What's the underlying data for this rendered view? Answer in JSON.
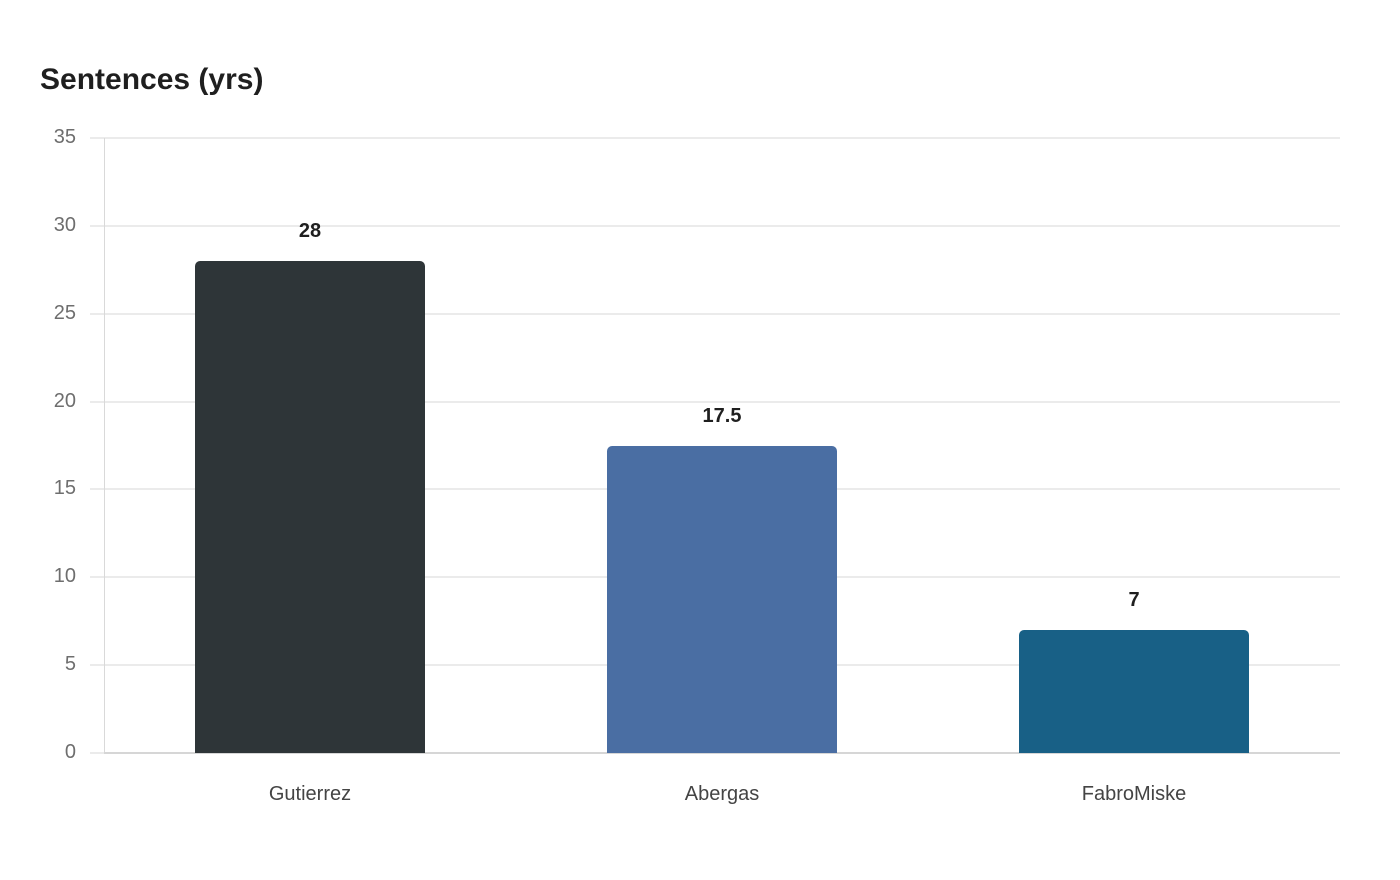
{
  "title": "Sentences (yrs)",
  "y_ticks": [
    "0",
    "5",
    "10",
    "15",
    "20",
    "25",
    "30",
    "35"
  ],
  "bars": [
    {
      "label": "Gutierrez",
      "value": 28,
      "value_label": "28",
      "color": "#2e3538"
    },
    {
      "label": "Abergas",
      "value": 17.5,
      "value_label": "17.5",
      "color": "#4a6ea3"
    },
    {
      "label": "FabroMiske",
      "value": 7,
      "value_label": "7",
      "color": "#186086"
    }
  ],
  "chart_data": {
    "type": "bar",
    "title": "Sentences (yrs)",
    "categories": [
      "Gutierrez",
      "Abergas",
      "FabroMiske"
    ],
    "values": [
      28,
      17.5,
      7
    ],
    "colors": [
      "#2e3538",
      "#4a6ea3",
      "#186086"
    ],
    "xlabel": "",
    "ylabel": "",
    "ylim": [
      0,
      35
    ],
    "yticks": [
      0,
      5,
      10,
      15,
      20,
      25,
      30,
      35
    ],
    "grid": true,
    "legend": null,
    "data_labels": true
  }
}
